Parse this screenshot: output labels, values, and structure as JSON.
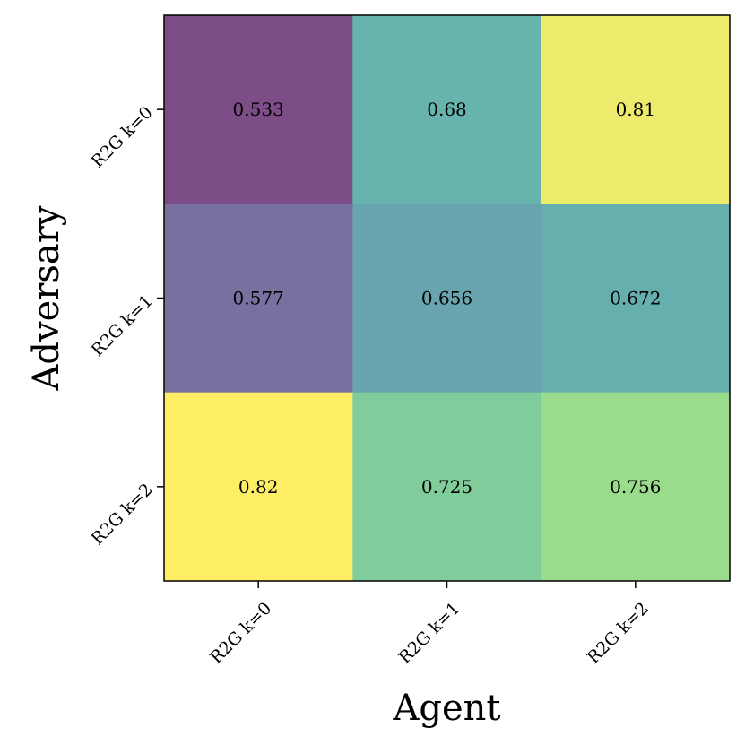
{
  "chart_data": {
    "type": "heatmap",
    "xlabel": "Agent",
    "ylabel": "Adversary",
    "x_categories": [
      "R2G k=0",
      "R2G k=1",
      "R2G k=2"
    ],
    "y_categories": [
      "R2G k=0",
      "R2G k=1",
      "R2G k=2"
    ],
    "values": [
      [
        "0.533",
        "0.68",
        "0.81"
      ],
      [
        "0.577",
        "0.656",
        "0.672"
      ],
      [
        "0.82",
        "0.725",
        "0.756"
      ]
    ],
    "vmin": 0.533,
    "vmax": 0.82,
    "colormap": "viridis",
    "grid": false
  }
}
